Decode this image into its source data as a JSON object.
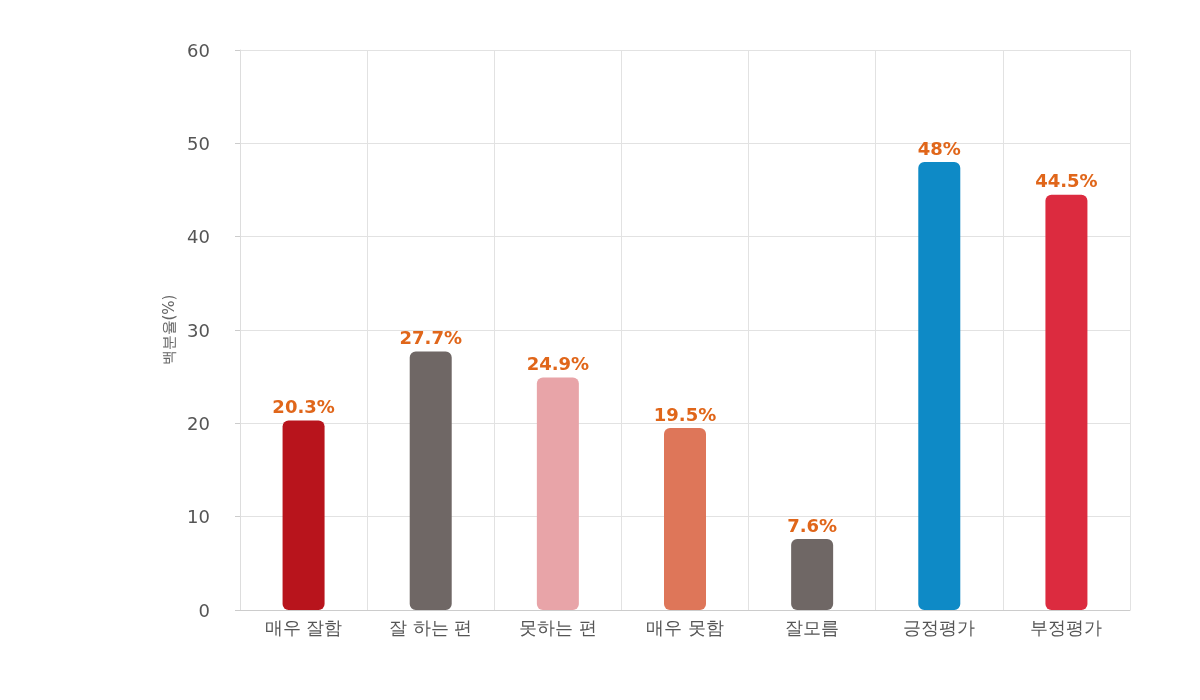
{
  "chart_data": {
    "type": "bar",
    "ylabel": "백분율(%)",
    "categories": [
      "매우 잘함",
      "잘 하는 편",
      "못하는 편",
      "매우 못함",
      "잘모름",
      "긍정평가",
      "부정평가"
    ],
    "values": [
      20.3,
      27.7,
      24.9,
      19.5,
      7.6,
      48,
      44.5
    ],
    "colors": [
      "#b8141c",
      "#6f6765",
      "#e8a4a8",
      "#de7659",
      "#6f6765",
      "#0e8ac6",
      "#dc2b3f"
    ],
    "value_labels": [
      "20.3%",
      "27.7%",
      "24.9%",
      "19.5%",
      "7.6%",
      "48%",
      "44.5%"
    ],
    "ylim": [
      0,
      60
    ],
    "yticks": [
      0,
      10,
      20,
      30,
      40,
      50,
      60
    ],
    "grid": true
  }
}
